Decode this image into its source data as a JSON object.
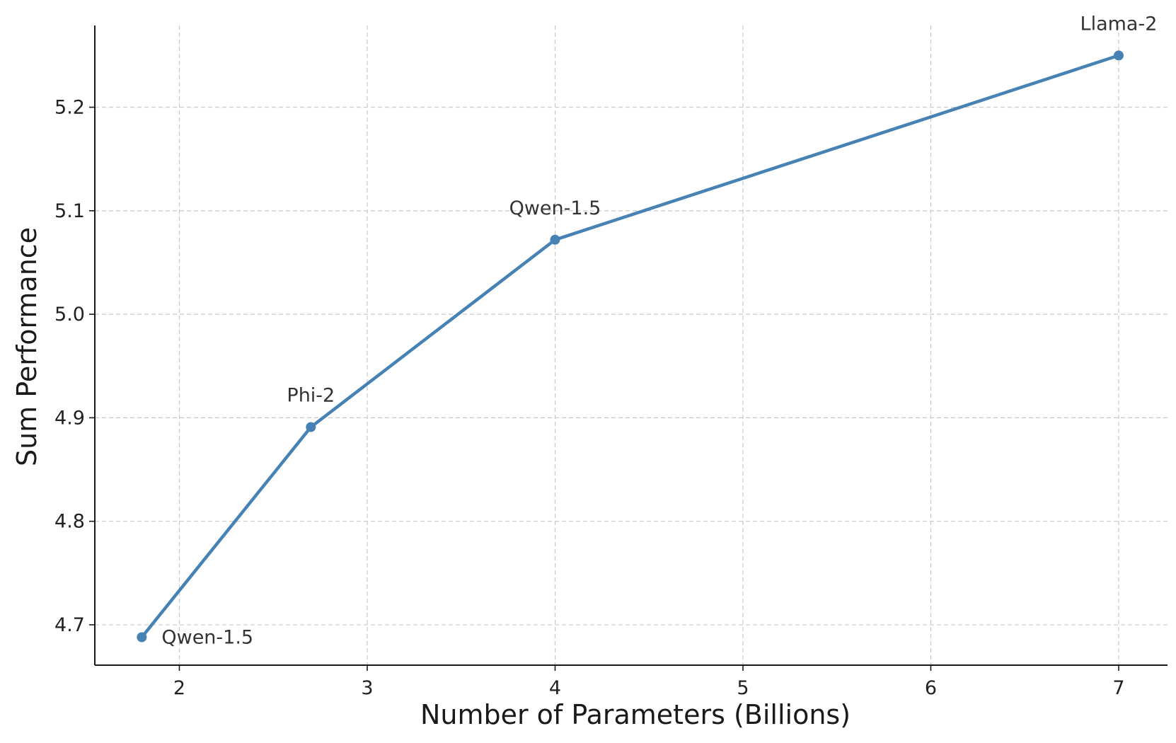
{
  "chart_data": {
    "type": "line",
    "title": "",
    "xlabel": "Number of Parameters (Billions)",
    "ylabel": "Sum Performance",
    "xlim": [
      1.55,
      7.26
    ],
    "ylim": [
      4.661,
      5.279
    ],
    "xticks": [
      2,
      3,
      4,
      5,
      6,
      7
    ],
    "xtick_labels": [
      "2",
      "3",
      "4",
      "5",
      "6",
      "7"
    ],
    "yticks": [
      4.7,
      4.8,
      4.9,
      5.0,
      5.1,
      5.2
    ],
    "ytick_labels": [
      "4.7",
      "4.8",
      "4.9",
      "5.0",
      "5.1",
      "5.2"
    ],
    "grid": true,
    "line_color": "#4682b4",
    "series": [
      {
        "x": [
          1.8,
          2.7,
          4.0,
          7.0
        ],
        "y": [
          4.688,
          4.891,
          5.072,
          5.25
        ],
        "labels": [
          "Qwen-1.5",
          "Phi-2",
          "Qwen-1.5",
          "Llama-2"
        ]
      }
    ]
  }
}
